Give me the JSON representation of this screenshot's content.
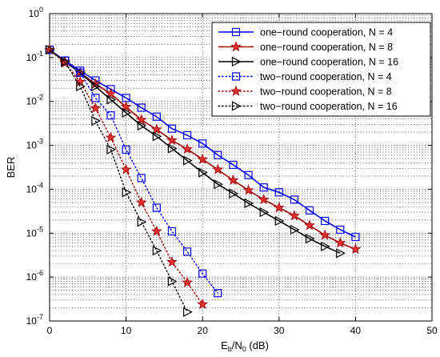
{
  "chart_data": {
    "type": "line",
    "title": "",
    "xlabel": "E",
    "xlabel_sub": "b",
    "xlabel_mid": "/N",
    "xlabel_sub2": "0",
    "xlabel_tail": " (dB)",
    "ylabel": "BER",
    "xlim": [
      0,
      50
    ],
    "ylim": [
      1e-07,
      1
    ],
    "yscale": "log",
    "grid": true,
    "legend_position": "top-right",
    "x_ticks": [
      {
        "value": 0,
        "label": "0"
      },
      {
        "value": 10,
        "label": "10"
      },
      {
        "value": 20,
        "label": "20"
      },
      {
        "value": 30,
        "label": "30"
      },
      {
        "value": 40,
        "label": "40"
      },
      {
        "value": 50,
        "label": "50"
      }
    ],
    "y_ticks": [
      {
        "exp": 0,
        "base": "10",
        "sup": "0"
      },
      {
        "exp": -1,
        "base": "10",
        "sup": "-1"
      },
      {
        "exp": -2,
        "base": "10",
        "sup": "-2"
      },
      {
        "exp": -3,
        "base": "10",
        "sup": "-3"
      },
      {
        "exp": -4,
        "base": "10",
        "sup": "-4"
      },
      {
        "exp": -5,
        "base": "10",
        "sup": "-5"
      },
      {
        "exp": -6,
        "base": "10",
        "sup": "-6"
      },
      {
        "exp": -7,
        "base": "10",
        "sup": "-7"
      }
    ],
    "series": [
      {
        "name": "one−round cooperation, N = 4",
        "color": "#0000ff",
        "line": "solid",
        "marker": "square",
        "x": [
          0,
          2,
          4,
          6,
          8,
          10,
          12,
          14,
          16,
          18,
          20,
          22,
          24,
          26,
          28,
          30,
          32,
          34,
          36,
          38,
          40
        ],
        "y": [
          0.15,
          0.085,
          0.05,
          0.03,
          0.019,
          0.012,
          0.0072,
          0.0045,
          0.0024,
          0.0017,
          0.0011,
          0.0006,
          0.00036,
          0.00021,
          0.00011,
          8.5e-05,
          5.8e-05,
          3.3e-05,
          1.9e-05,
          1.2e-05,
          8.2e-06
        ]
      },
      {
        "name": "one−round cooperation, N = 8",
        "color": "#a00000",
        "line": "solid",
        "marker": "star",
        "x": [
          0,
          2,
          4,
          6,
          8,
          10,
          12,
          14,
          16,
          18,
          20,
          22,
          24,
          26,
          28,
          30,
          32,
          34,
          36,
          38,
          40
        ],
        "y": [
          0.15,
          0.08,
          0.045,
          0.025,
          0.015,
          0.0075,
          0.0038,
          0.0023,
          0.0013,
          0.00082,
          0.00048,
          0.00028,
          0.00016,
          9.5e-05,
          5.8e-05,
          3.8e-05,
          2.5e-05,
          1.5e-05,
          9e-06,
          6e-06,
          4.3e-06
        ]
      },
      {
        "name": "one−round cooperation, N = 16",
        "color": "#000000",
        "line": "solid",
        "marker": "triangle-right",
        "x": [
          0,
          2,
          4,
          6,
          8,
          10,
          12,
          14,
          16,
          18,
          20,
          22,
          24,
          26,
          28,
          30,
          32,
          34,
          36,
          38
        ],
        "y": [
          0.15,
          0.08,
          0.045,
          0.022,
          0.011,
          0.0055,
          0.0028,
          0.0016,
          0.00085,
          0.00045,
          0.00024,
          0.00013,
          8e-05,
          4.8e-05,
          3e-05,
          1.9e-05,
          1.2e-05,
          7.5e-06,
          5e-06,
          3.5e-06
        ]
      },
      {
        "name": "two−round cooperation, N = 4",
        "color": "#0000ff",
        "line": "dotted",
        "marker": "square",
        "x": [
          0,
          2,
          4,
          6,
          8,
          10,
          12,
          14,
          16,
          18,
          20,
          22
        ],
        "y": [
          0.15,
          0.085,
          0.045,
          0.012,
          0.0048,
          0.0008,
          0.00018,
          3.8e-05,
          1.1e-05,
          3.8e-06,
          1.2e-06,
          4.3e-07
        ]
      },
      {
        "name": "two−round cooperation, N = 8",
        "color": "#a00000",
        "line": "dotted",
        "marker": "star",
        "x": [
          0,
          2,
          4,
          6,
          8,
          10,
          12,
          14,
          16,
          18,
          20
        ],
        "y": [
          0.15,
          0.075,
          0.028,
          0.007,
          0.0015,
          0.00028,
          5e-05,
          1.1e-05,
          2.2e-06,
          7.5e-07,
          2.4e-07
        ]
      },
      {
        "name": "two−round cooperation, N = 16",
        "color": "#000000",
        "line": "dotted",
        "marker": "triangle-right",
        "x": [
          0,
          2,
          4,
          6,
          8,
          10,
          12,
          14,
          16,
          18
        ],
        "y": [
          0.15,
          0.08,
          0.022,
          0.0036,
          0.0008,
          8.5e-05,
          1.8e-05,
          4e-06,
          8e-07,
          1.6e-07
        ]
      }
    ]
  }
}
